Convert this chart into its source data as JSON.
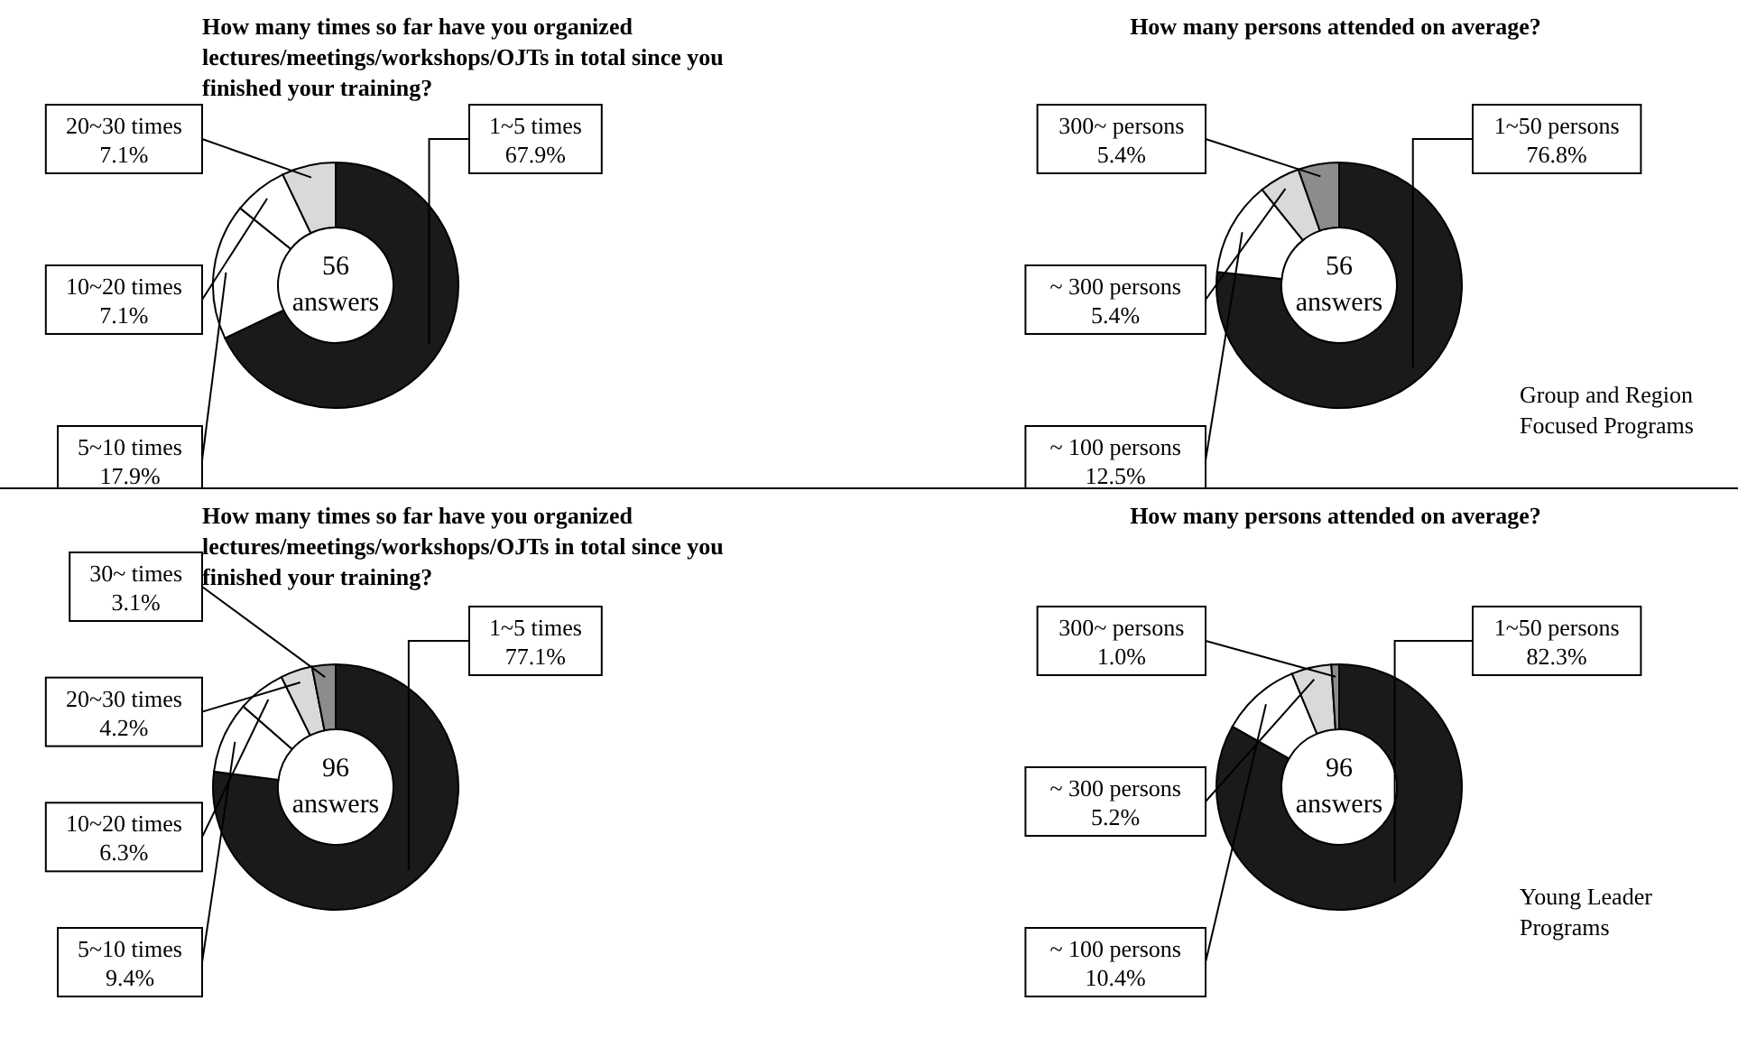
{
  "chart_data": [
    {
      "type": "donut",
      "title": "How many times so far have you organized lectures/meetings/workshops/OJTs in total since you finished your training?",
      "categories": [
        "1~5 times",
        "5~10 times",
        "10~20 times",
        "20~30 times"
      ],
      "values": [
        67.9,
        17.9,
        7.1,
        7.1
      ],
      "value_labels": [
        "67.9%",
        "17.9%",
        "7.1%",
        "7.1%"
      ],
      "colors": [
        "#1a1a1a",
        "#ffffff",
        "#ffffff",
        "#d9d9d9"
      ],
      "annotations": [
        "56 answers"
      ],
      "legend": false
    },
    {
      "type": "donut",
      "title": "How many persons attended on average?",
      "categories": [
        "1~50 persons",
        "~ 100 persons",
        "~ 300 persons",
        "300~ persons"
      ],
      "values": [
        76.8,
        12.5,
        5.4,
        5.4
      ],
      "value_labels": [
        "76.8%",
        "12.5%",
        "5.4%",
        "5.4%"
      ],
      "colors": [
        "#1a1a1a",
        "#ffffff",
        "#d9d9d9",
        "#8c8c8c"
      ],
      "annotations": [
        "56 answers",
        "Group and Region Focused Programs"
      ],
      "legend": false
    },
    {
      "type": "donut",
      "title": "How many times so far have you organized lectures/meetings/workshops/OJTs in total since you finished your training?",
      "categories": [
        "1~5 times",
        "5~10 times",
        "10~20 times",
        "20~30 times",
        "30~ times"
      ],
      "values": [
        77.1,
        9.4,
        6.3,
        4.2,
        3.1
      ],
      "value_labels": [
        "77.1%",
        "9.4%",
        "6.3%",
        "4.2%",
        "3.1%"
      ],
      "colors": [
        "#1a1a1a",
        "#ffffff",
        "#ffffff",
        "#d9d9d9",
        "#8c8c8c"
      ],
      "annotations": [
        "96 answers"
      ],
      "legend": false
    },
    {
      "type": "donut",
      "title": "How many persons attended on average?",
      "categories": [
        "1~50 persons",
        "~ 100 persons",
        "~ 300 persons",
        "300~ persons"
      ],
      "values": [
        82.3,
        10.4,
        5.2,
        1.0
      ],
      "value_labels": [
        "82.3%",
        "10.4%",
        "5.2%",
        "1.0%"
      ],
      "colors": [
        "#1a1a1a",
        "#ffffff",
        "#d9d9d9",
        "#8c8c8c"
      ],
      "annotations": [
        "96 answers",
        "Young Leader Programs"
      ],
      "legend": false
    }
  ]
}
